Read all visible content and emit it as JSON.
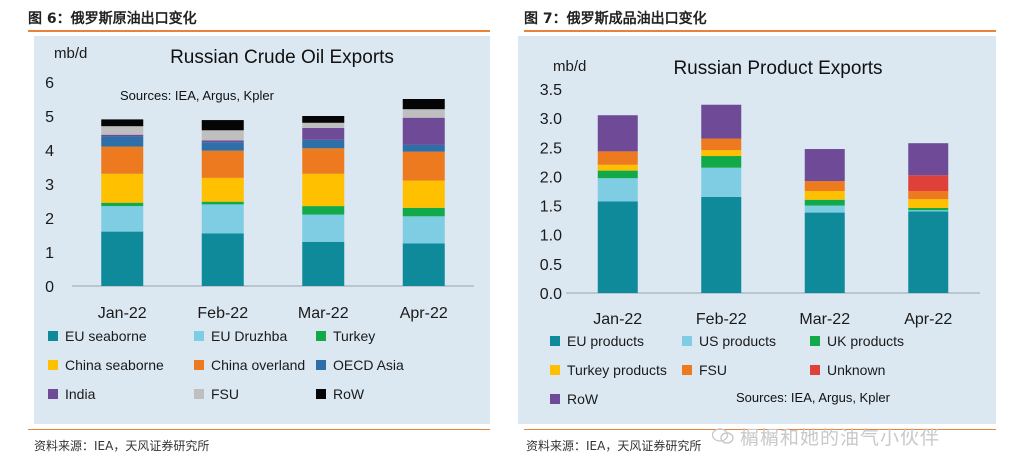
{
  "figures": [
    {
      "title": "图 6：俄罗斯原油出口变化",
      "source": "资料来源：IEA，天风证券研究所"
    },
    {
      "title": "图 7：俄罗斯成品油出口变化",
      "source": "资料来源：IEA，天风证券研究所"
    }
  ],
  "watermark": "榍榍和她的油气小伙伴",
  "chart_data": [
    {
      "type": "bar",
      "stacked": true,
      "title": "Russian Crude Oil Exports",
      "ylabel": "mb/d",
      "annotation": "Sources: IEA, Argus, Kpler",
      "ylim": [
        0,
        6
      ],
      "yticks": [
        "0",
        "1",
        "2",
        "3",
        "4",
        "5",
        "6"
      ],
      "categories": [
        "Jan-22",
        "Feb-22",
        "Mar-22",
        "Apr-22"
      ],
      "series": [
        {
          "name": "EU seaborne",
          "color": "#0e8a9a",
          "values": [
            1.6,
            1.55,
            1.3,
            1.25
          ]
        },
        {
          "name": "EU Druzhba",
          "color": "#7ecde3",
          "values": [
            0.75,
            0.85,
            0.8,
            0.8
          ]
        },
        {
          "name": "Turkey",
          "color": "#12a94a",
          "values": [
            0.1,
            0.08,
            0.25,
            0.25
          ]
        },
        {
          "name": "China seaborne",
          "color": "#ffc000",
          "values": [
            0.85,
            0.7,
            0.95,
            0.8
          ]
        },
        {
          "name": "China overland",
          "color": "#ee7a1f",
          "values": [
            0.8,
            0.8,
            0.75,
            0.85
          ]
        },
        {
          "name": "OECD Asia",
          "color": "#2d6fa6",
          "values": [
            0.3,
            0.25,
            0.25,
            0.2
          ]
        },
        {
          "name": "India",
          "color": "#6e4a97",
          "values": [
            0.05,
            0.05,
            0.35,
            0.8
          ]
        },
        {
          "name": "FSU",
          "color": "#bfbfbf",
          "values": [
            0.25,
            0.3,
            0.15,
            0.25
          ]
        },
        {
          "name": "RoW",
          "color": "#050505",
          "values": [
            0.2,
            0.3,
            0.2,
            0.3
          ]
        }
      ]
    },
    {
      "type": "bar",
      "stacked": true,
      "title": "Russian Product Exports",
      "ylabel": "mb/d",
      "annotation": "Sources: IEA, Argus, Kpler",
      "ylim": [
        0,
        3.5
      ],
      "yticks": [
        "0.0",
        "0.5",
        "1.0",
        "1.5",
        "2.0",
        "2.5",
        "3.0",
        "3.5"
      ],
      "categories": [
        "Jan-22",
        "Feb-22",
        "Mar-22",
        "Apr-22"
      ],
      "series": [
        {
          "name": "EU products",
          "color": "#0e8a9a",
          "values": [
            1.57,
            1.65,
            1.38,
            1.4
          ]
        },
        {
          "name": "US products",
          "color": "#7ecde3",
          "values": [
            0.4,
            0.5,
            0.12,
            0.02
          ]
        },
        {
          "name": "UK products",
          "color": "#12a94a",
          "values": [
            0.13,
            0.2,
            0.1,
            0.04
          ]
        },
        {
          "name": "Turkey products",
          "color": "#ffc000",
          "values": [
            0.1,
            0.1,
            0.15,
            0.15
          ]
        },
        {
          "name": "FSU",
          "color": "#ee7a1f",
          "values": [
            0.23,
            0.2,
            0.17,
            0.14
          ]
        },
        {
          "name": "Unknown",
          "color": "#e0403a",
          "values": [
            0.0,
            0.0,
            0.0,
            0.27
          ]
        },
        {
          "name": "RoW",
          "color": "#6e4a97",
          "values": [
            0.62,
            0.58,
            0.55,
            0.55
          ]
        }
      ]
    }
  ]
}
